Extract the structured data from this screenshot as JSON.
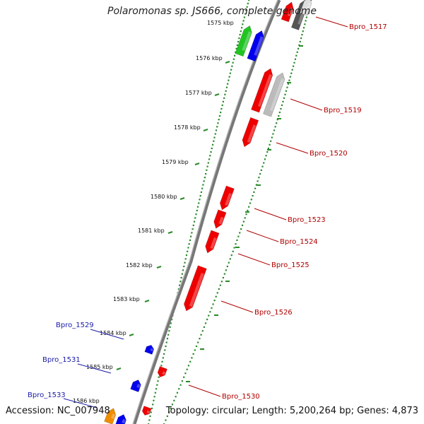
{
  "title": "Polaromonas sp. JS666, complete genome",
  "footer": {
    "accession": "Accession: NC_007948",
    "topology": "Topology: circular; Length: 5,200,264 bp; Genes: 4,873"
  },
  "colors": {
    "backbone": "#777777",
    "tick": "#2a8a2a",
    "red": "#ee0000",
    "blue": "#0000ee",
    "green": "#22c422",
    "gray": "#bbbbbb",
    "darkgray": "#555555",
    "orange": "#f08c00",
    "label_red": "#b00000",
    "label_blue": "#1a1aa8"
  },
  "kbp_labels": [
    "1575 kbp",
    "1576 kbp",
    "1577 kbp",
    "1578 kbp",
    "1579 kbp",
    "1580 kbp",
    "1581 kbp",
    "1582 kbp",
    "1583 kbp",
    "1584 kbp",
    "1585 kbp",
    "1586 kbp"
  ],
  "gene_labels_right": [
    "Bpro_1517",
    "Bpro_1519",
    "Bpro_1520",
    "Bpro_1523",
    "Bpro_1524",
    "Bpro_1525",
    "Bpro_1526",
    "Bpro_1530"
  ],
  "gene_labels_left": [
    "Bpro_1529",
    "Bpro_1531",
    "Bpro_1533"
  ]
}
